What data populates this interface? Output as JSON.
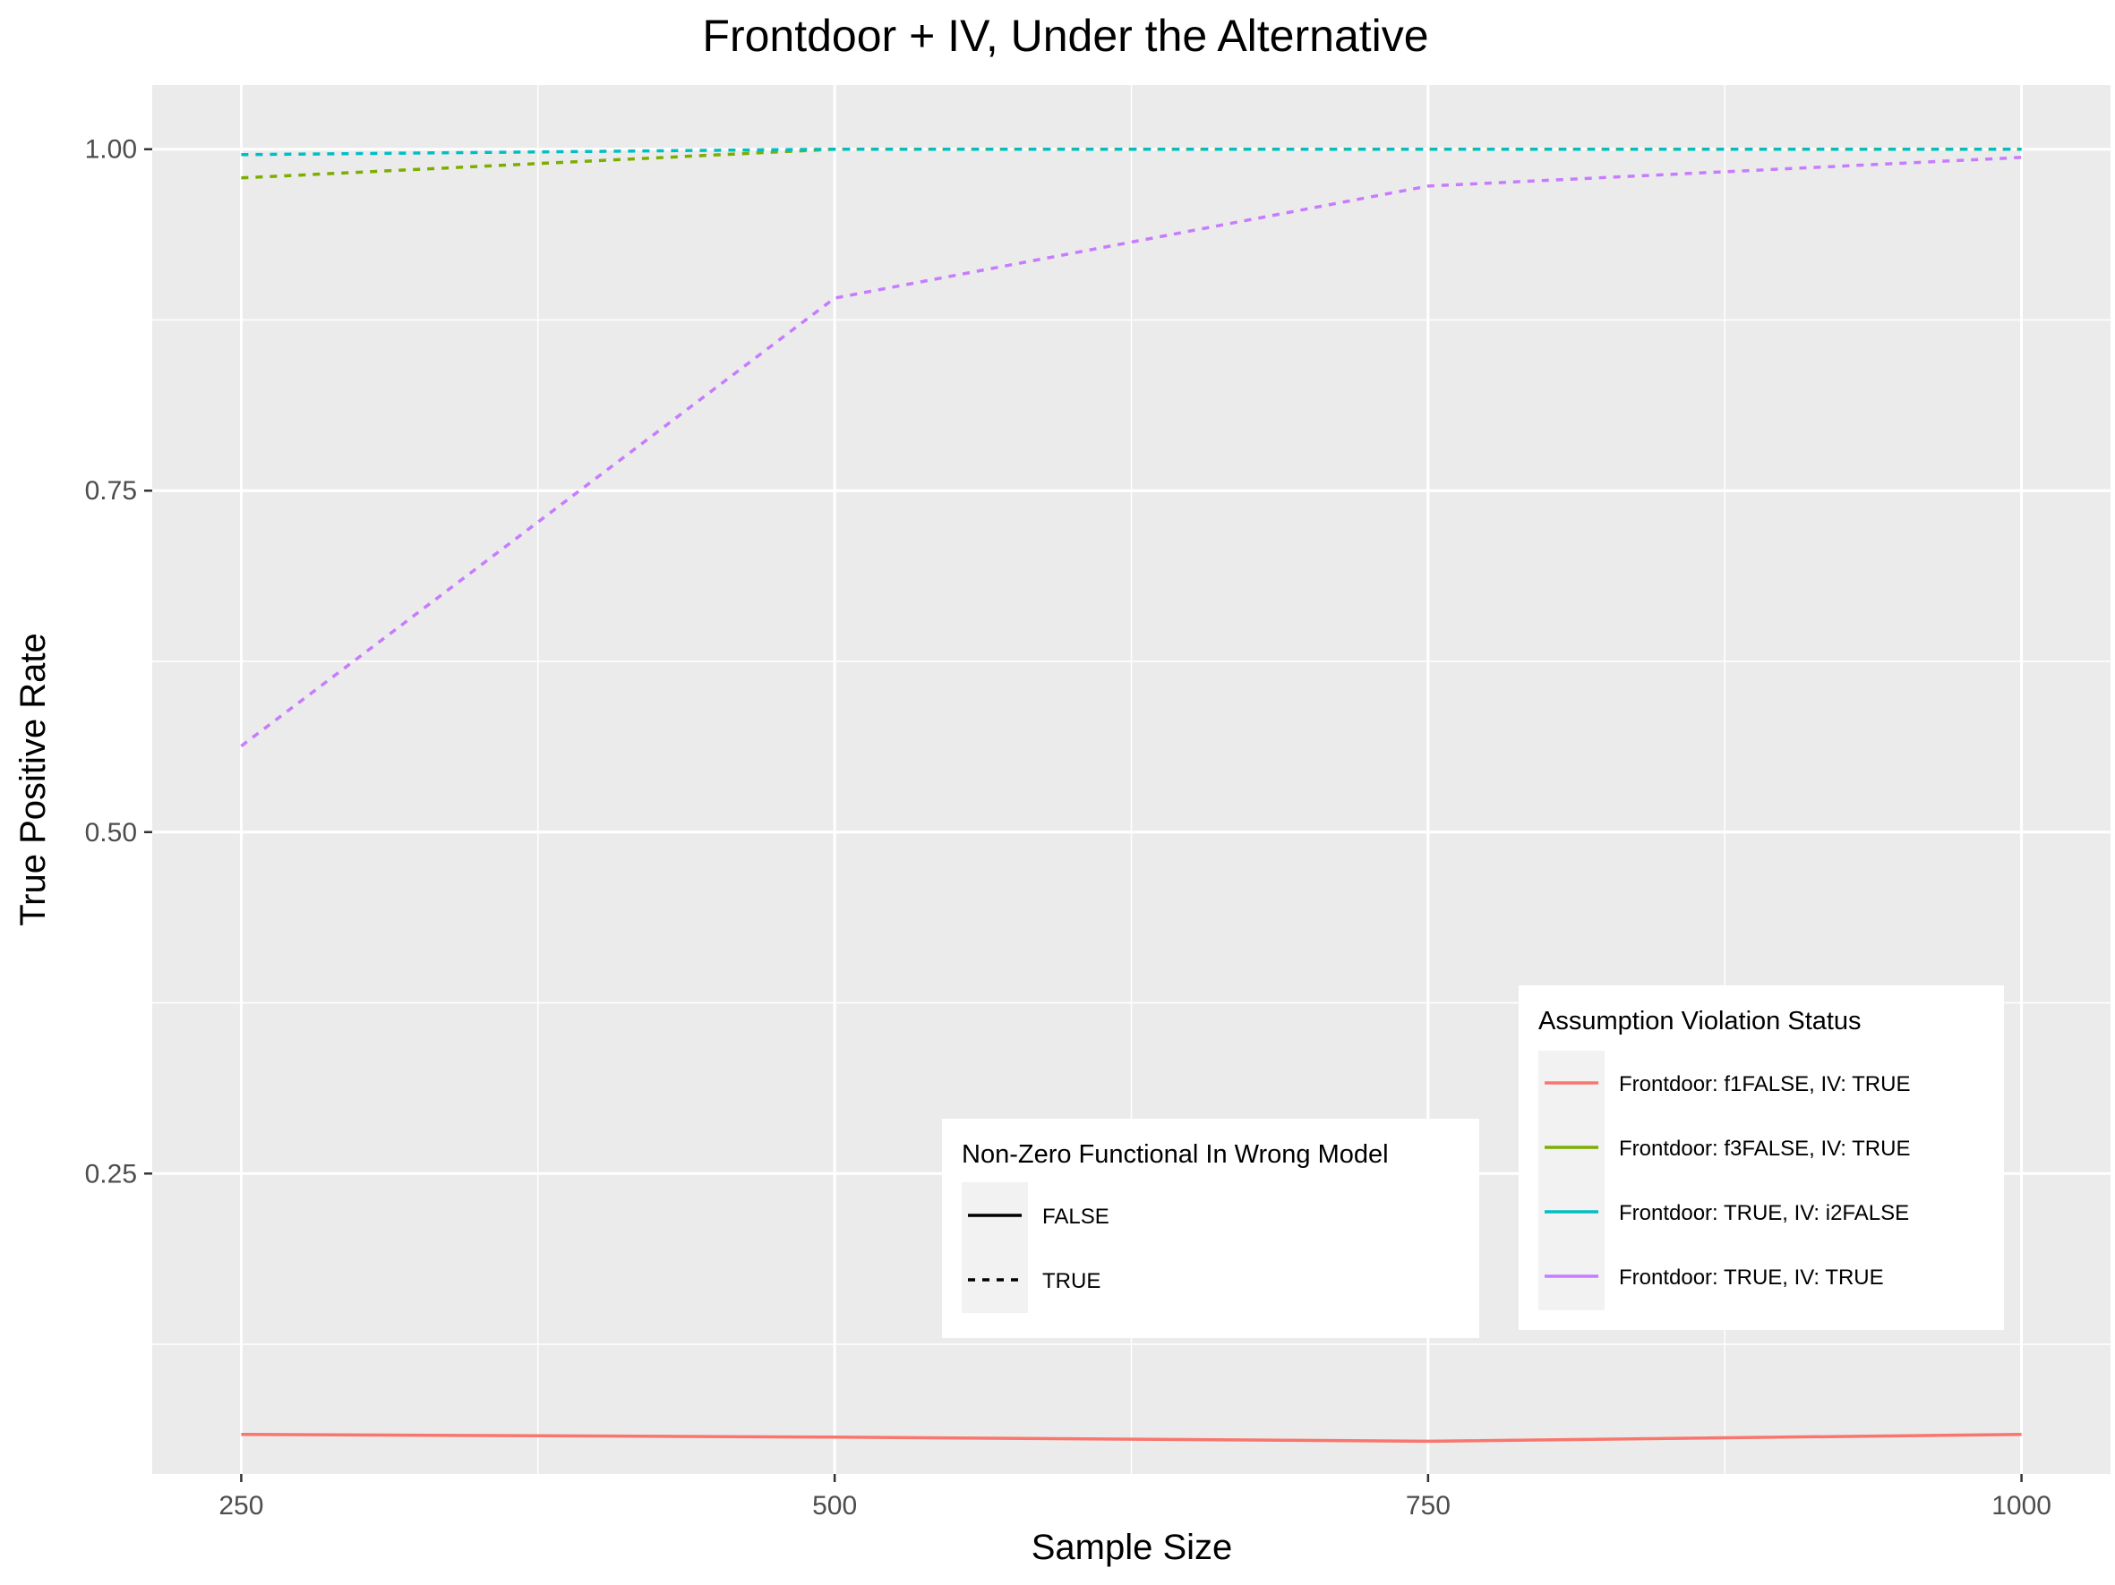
{
  "chart_data": {
    "type": "line",
    "title": "Frontdoor + IV, Under the Alternative",
    "xlabel": "Sample Size",
    "ylabel": "True Positive Rate",
    "x": [
      250,
      500,
      750,
      1000
    ],
    "x_ticks": [
      250,
      500,
      750,
      1000
    ],
    "x_tick_labels": [
      "250",
      "500",
      "750",
      "1000"
    ],
    "y_ticks": [
      0.25,
      0.5,
      0.75,
      1.0
    ],
    "y_tick_labels": [
      "0.25",
      "0.50",
      "0.75",
      "1.00"
    ],
    "xlim": [
      212.5,
      1037.5
    ],
    "ylim": [
      0.03,
      1.047
    ],
    "grid": true,
    "series": [
      {
        "name": "Frontdoor: f1FALSE, IV: TRUE",
        "color": "#F8766D",
        "linetype": "solid",
        "values": [
          0.059,
          0.057,
          0.054,
          0.059
        ]
      },
      {
        "name": "Frontdoor: f3FALSE, IV: TRUE",
        "color": "#7CAE00",
        "linetype": "dashed",
        "values": [
          0.979,
          1.0,
          1.0,
          1.0
        ]
      },
      {
        "name": "Frontdoor: TRUE, IV: i2FALSE",
        "color": "#00BFC4",
        "linetype": "dashed",
        "values": [
          0.996,
          1.0,
          1.0,
          1.0
        ]
      },
      {
        "name": "Frontdoor: TRUE, IV: TRUE",
        "color": "#C77CFF",
        "linetype": "dashed",
        "values": [
          0.563,
          0.891,
          0.973,
          0.994
        ]
      }
    ],
    "legends": [
      {
        "title": "Non-Zero Functional In Wrong Model",
        "placement": "bottom-center",
        "items": [
          {
            "label": "FALSE",
            "linetype": "solid"
          },
          {
            "label": "TRUE",
            "linetype": "dashed"
          }
        ]
      },
      {
        "title": "Assumption Violation Status",
        "placement": "bottom-right",
        "items": [
          {
            "label": "Frontdoor: f1FALSE, IV: TRUE",
            "color": "#F8766D"
          },
          {
            "label": "Frontdoor: f3FALSE, IV: TRUE",
            "color": "#7CAE00"
          },
          {
            "label": "Frontdoor: TRUE, IV: i2FALSE",
            "color": "#00BFC4"
          },
          {
            "label": "Frontdoor: TRUE, IV: TRUE",
            "color": "#C77CFF"
          }
        ]
      }
    ]
  }
}
